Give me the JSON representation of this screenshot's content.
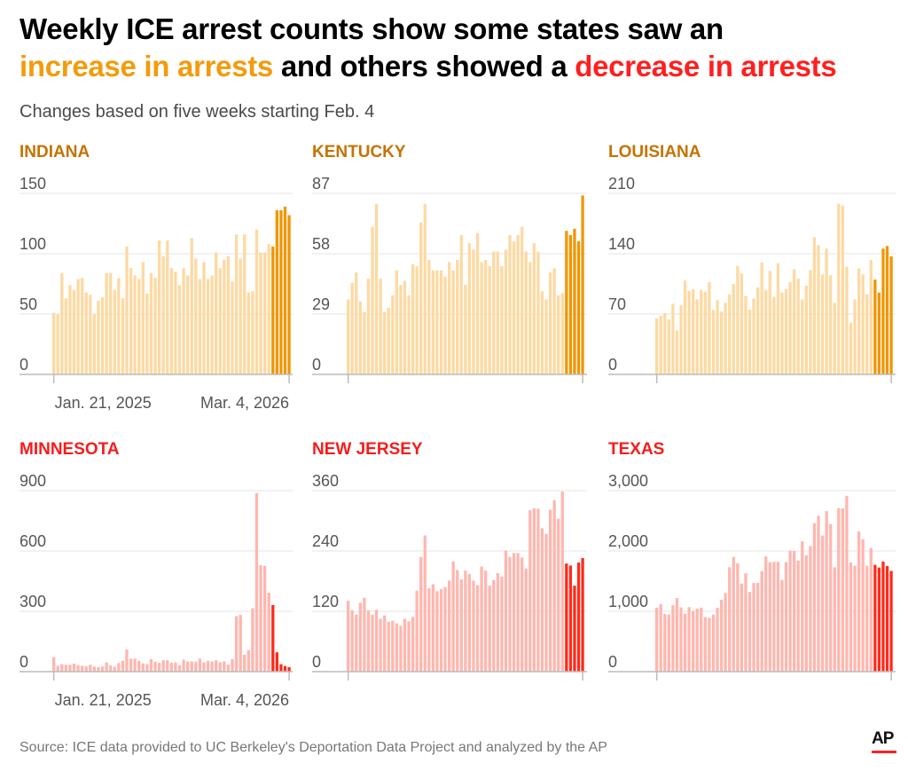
{
  "header": {
    "title_part1": "Weekly ICE arrest counts show some states saw an",
    "title_increase": "increase in arrests",
    "title_part2": " and others showed a ",
    "title_decrease": "decrease in arrests",
    "subtitle": "Changes based on five weeks starting Feb. 4"
  },
  "colors": {
    "increase_light": "#fdd9a2",
    "increase_dark": "#f09600",
    "increase_label": "#c47300",
    "decrease_light": "#ffb6ae",
    "decrease_dark": "#ff2a1a",
    "decrease_label": "#f51c1c",
    "gridline": "#e6e6e6",
    "axis": "#bbbbbb"
  },
  "footer": {
    "source": "Source: ICE data provided to UC Berkeley's Deportation Data Project and analyzed by the AP",
    "logo": "AP"
  },
  "chart_data": [
    {
      "type": "bar",
      "title": "INDIANA",
      "trend": "increase",
      "ylim": [
        0,
        150
      ],
      "yticks": [
        "0",
        "50",
        "100",
        "150"
      ],
      "x_tick_labels": [
        "Jan. 21, 2025",
        "Mar. 4, 2026"
      ],
      "highlighted_weeks": 5,
      "grid": true,
      "values": [
        51,
        50,
        84,
        63,
        74,
        70,
        79,
        80,
        68,
        66,
        50,
        61,
        64,
        84,
        84,
        70,
        80,
        63,
        106,
        88,
        82,
        79,
        93,
        67,
        84,
        80,
        111,
        98,
        111,
        88,
        85,
        74,
        88,
        82,
        113,
        96,
        79,
        93,
        79,
        82,
        101,
        88,
        95,
        98,
        77,
        116,
        96,
        116,
        68,
        69,
        120,
        101,
        101,
        108,
        106,
        136,
        136,
        139,
        132
      ]
    },
    {
      "type": "bar",
      "title": "KENTUCKY",
      "trend": "increase",
      "ylim": [
        0,
        87
      ],
      "yticks": [
        "0",
        "29",
        "58",
        "87"
      ],
      "x_tick_labels": [
        "",
        ""
      ],
      "highlighted_weeks": 5,
      "grid": true,
      "values": [
        36,
        44,
        49,
        35,
        30,
        46,
        71,
        82,
        46,
        30,
        32,
        38,
        50,
        43,
        45,
        38,
        53,
        52,
        73,
        82,
        55,
        50,
        50,
        50,
        47,
        54,
        50,
        55,
        67,
        43,
        63,
        60,
        68,
        54,
        55,
        52,
        59,
        59,
        52,
        60,
        67,
        64,
        67,
        71,
        59,
        54,
        63,
        59,
        40,
        36,
        49,
        51,
        38,
        39,
        69,
        67,
        70,
        64,
        86
      ]
    },
    {
      "type": "bar",
      "title": "LOUISIANA",
      "trend": "increase",
      "ylim": [
        0,
        210
      ],
      "yticks": [
        "0",
        "70",
        "140",
        "210"
      ],
      "x_tick_labels": [
        "",
        ""
      ],
      "highlighted_weeks": 5,
      "grid": true,
      "values": [
        65,
        68,
        71,
        64,
        82,
        51,
        80,
        109,
        97,
        99,
        87,
        98,
        96,
        107,
        75,
        86,
        73,
        83,
        93,
        105,
        126,
        117,
        91,
        75,
        88,
        101,
        130,
        98,
        120,
        90,
        129,
        95,
        99,
        107,
        122,
        111,
        87,
        103,
        121,
        159,
        150,
        116,
        146,
        115,
        83,
        198,
        196,
        125,
        60,
        87,
        123,
        116,
        93,
        133,
        110,
        95,
        146,
        149,
        137
      ]
    },
    {
      "type": "bar",
      "title": "MINNESOTA",
      "trend": "decrease",
      "ylim": [
        0,
        900
      ],
      "yticks": [
        "0",
        "300",
        "600",
        "900"
      ],
      "x_tick_labels": [
        "Jan. 21, 2025",
        "Mar. 4, 2026"
      ],
      "highlighted_weeks": 5,
      "grid": true,
      "values": [
        72,
        29,
        37,
        34,
        34,
        40,
        32,
        29,
        26,
        34,
        25,
        22,
        26,
        46,
        31,
        24,
        43,
        54,
        110,
        65,
        65,
        54,
        41,
        37,
        62,
        50,
        44,
        57,
        57,
        44,
        46,
        32,
        60,
        51,
        51,
        50,
        65,
        46,
        54,
        51,
        57,
        47,
        51,
        35,
        62,
        276,
        282,
        84,
        107,
        315,
        888,
        529,
        526,
        393,
        331,
        96,
        37,
        28,
        22
      ]
    },
    {
      "type": "bar",
      "title": "NEW JERSEY",
      "trend": "decrease",
      "ylim": [
        0,
        360
      ],
      "yticks": [
        "0",
        "120",
        "240",
        "360"
      ],
      "x_tick_labels": [
        "",
        ""
      ],
      "highlighted_weeks": 5,
      "grid": true,
      "values": [
        141,
        122,
        113,
        137,
        147,
        122,
        113,
        123,
        105,
        112,
        99,
        101,
        96,
        91,
        105,
        100,
        109,
        161,
        228,
        271,
        166,
        174,
        160,
        164,
        168,
        181,
        219,
        202,
        184,
        201,
        194,
        181,
        172,
        209,
        201,
        171,
        182,
        196,
        189,
        241,
        228,
        236,
        236,
        227,
        205,
        321,
        325,
        324,
        285,
        274,
        322,
        341,
        304,
        358,
        215,
        211,
        171,
        217,
        226
      ]
    },
    {
      "type": "bar",
      "title": "TEXAS",
      "trend": "decrease",
      "ylim": [
        0,
        3000
      ],
      "yticks": [
        "0",
        "1,000",
        "2,000",
        "3,000"
      ],
      "x_tick_labels": [
        "",
        ""
      ],
      "highlighted_weeks": 5,
      "grid": true,
      "values": [
        1060,
        1120,
        955,
        945,
        1100,
        1220,
        1065,
        960,
        1070,
        1005,
        1045,
        1060,
        905,
        890,
        945,
        1060,
        1190,
        1305,
        1730,
        1900,
        1795,
        1460,
        1630,
        1320,
        1470,
        1470,
        1665,
        1910,
        1815,
        1820,
        1820,
        1520,
        1815,
        2005,
        2000,
        1840,
        2160,
        1930,
        2080,
        2460,
        2585,
        2255,
        2660,
        2445,
        1730,
        2710,
        2705,
        2915,
        1810,
        1755,
        2325,
        2195,
        1755,
        2050,
        1770,
        1725,
        1825,
        1750,
        1670
      ]
    }
  ]
}
